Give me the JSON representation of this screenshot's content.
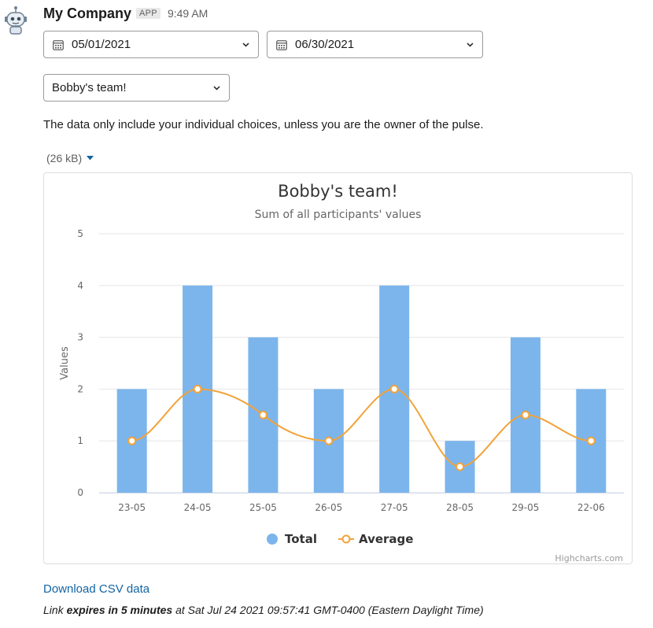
{
  "header": {
    "app_name": "My Company",
    "badge": "APP",
    "time": "9:49 AM"
  },
  "filters": {
    "start_date": "05/01/2021",
    "end_date": "06/30/2021",
    "team": "Bobby's team!"
  },
  "note": "The data only include your individual choices, unless you are the owner of the pulse.",
  "file_size": "(26 kB)",
  "credits": "Highcharts.com",
  "download_label": "Download CSV data",
  "expiry": {
    "prefix": "Link ",
    "bold": "expires in 5 minutes",
    "suffix": " at Sat Jul 24 2021 09:57:41 GMT-0400 (Eastern Daylight Time)"
  },
  "colors": {
    "bar": "#7cb5ec",
    "line": "#f2a33a",
    "grid": "#e6e6e6",
    "link": "#1264a3"
  },
  "chart_data": {
    "type": "bar",
    "title": "Bobby's team!",
    "subtitle": "Sum of all participants' values",
    "xlabel": "",
    "ylabel": "Values",
    "ylim": [
      0,
      5
    ],
    "yticks": [
      0,
      1,
      2,
      3,
      4,
      5
    ],
    "grid": true,
    "legend_position": "bottom-center",
    "categories": [
      "23-05",
      "24-05",
      "25-05",
      "26-05",
      "27-05",
      "28-05",
      "29-05",
      "22-06"
    ],
    "series": [
      {
        "name": "Total",
        "type": "bar",
        "values": [
          2,
          4,
          3,
          2,
          4,
          1,
          3,
          2
        ]
      },
      {
        "name": "Average",
        "type": "line",
        "values": [
          1,
          2,
          1.5,
          1,
          2,
          0.5,
          1.5,
          1
        ]
      }
    ]
  }
}
